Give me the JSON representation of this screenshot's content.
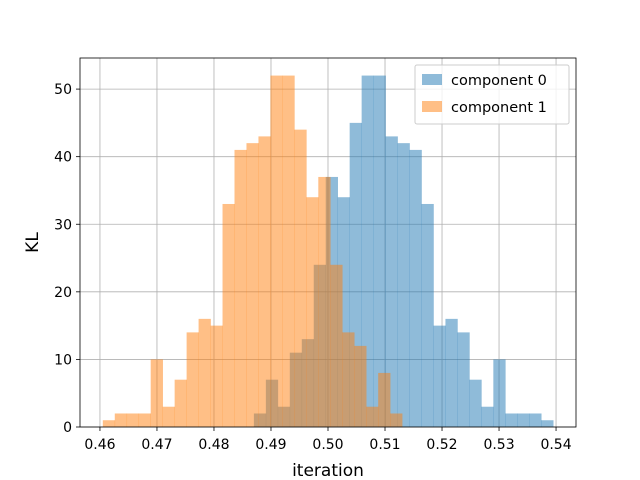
{
  "chart_data": {
    "type": "histogram",
    "title": "",
    "xlabel": "iteration",
    "ylabel": "KL",
    "xlim": [
      0.4565,
      0.5435
    ],
    "ylim": [
      0,
      54.6
    ],
    "xticks": [
      "0.46",
      "0.47",
      "0.48",
      "0.49",
      "0.50",
      "0.51",
      "0.52",
      "0.53",
      "0.54"
    ],
    "yticks": [
      "0",
      "10",
      "20",
      "30",
      "40",
      "50"
    ],
    "grid": true,
    "legend_position": "top-right",
    "series": [
      {
        "name": "component 0",
        "color": "#1f77b4",
        "alpha": 0.5,
        "bin_start": 0.487,
        "bin_width": 0.0021,
        "counts": [
          2,
          7,
          3,
          11,
          13,
          24,
          37,
          34,
          45,
          52,
          52,
          43,
          42,
          41,
          33,
          15,
          16,
          14,
          7,
          3,
          10,
          2,
          2,
          2,
          1
        ]
      },
      {
        "name": "component 1",
        "color": "#ff7f0e",
        "alpha": 0.5,
        "bin_start": 0.4605,
        "bin_width": 0.0021,
        "counts": [
          1,
          2,
          2,
          2,
          10,
          3,
          7,
          14,
          16,
          15,
          33,
          41,
          42,
          43,
          52,
          52,
          44,
          34,
          37,
          24,
          14,
          12,
          3,
          8,
          2
        ]
      }
    ]
  }
}
